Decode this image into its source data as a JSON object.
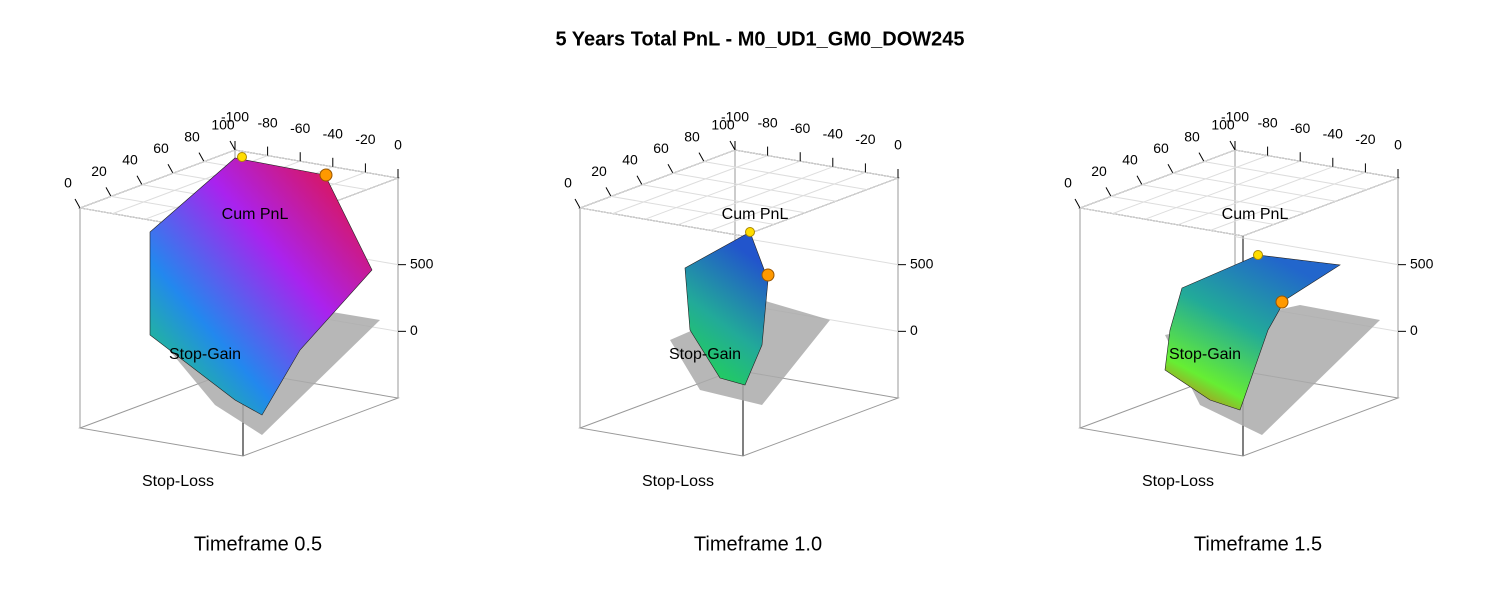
{
  "title": "5 Years Total PnL - M0_UD1_GM0_DOW245",
  "chart_data": [
    {
      "type": "surface3d",
      "subtitle": "Timeframe 0.5",
      "xlabel": "Stop-Loss",
      "ylabel": "Stop-Gain",
      "zlabel": "Cum PnL",
      "xlim": [
        0,
        100
      ],
      "xticks": [
        0,
        20,
        40,
        60,
        80,
        100
      ],
      "ylim": [
        -100,
        0
      ],
      "yticks": [
        -100,
        -80,
        -60,
        -40,
        -20,
        0
      ],
      "zlim": [
        -500,
        1150
      ],
      "zticks": [
        0,
        500
      ]
    },
    {
      "type": "surface3d",
      "subtitle": "Timeframe 1.0",
      "xlabel": "Stop-Loss",
      "ylabel": "Stop-Gain",
      "zlabel": "Cum PnL",
      "xlim": [
        0,
        100
      ],
      "xticks": [
        0,
        20,
        40,
        60,
        80,
        100
      ],
      "ylim": [
        -100,
        0
      ],
      "yticks": [
        -100,
        -80,
        -60,
        -40,
        -20,
        0
      ],
      "zlim": [
        -500,
        1150
      ],
      "zticks": [
        0,
        500
      ]
    },
    {
      "type": "surface3d",
      "subtitle": "Timeframe 1.5",
      "xlabel": "Stop-Loss",
      "ylabel": "Stop-Gain",
      "zlabel": "Cum PnL",
      "xlim": [
        0,
        100
      ],
      "xticks": [
        0,
        20,
        40,
        60,
        80,
        100
      ],
      "ylim": [
        -100,
        0
      ],
      "yticks": [
        -100,
        -80,
        -60,
        -40,
        -20,
        0
      ],
      "zlim": [
        -500,
        1150
      ],
      "zticks": [
        0,
        500
      ]
    }
  ]
}
